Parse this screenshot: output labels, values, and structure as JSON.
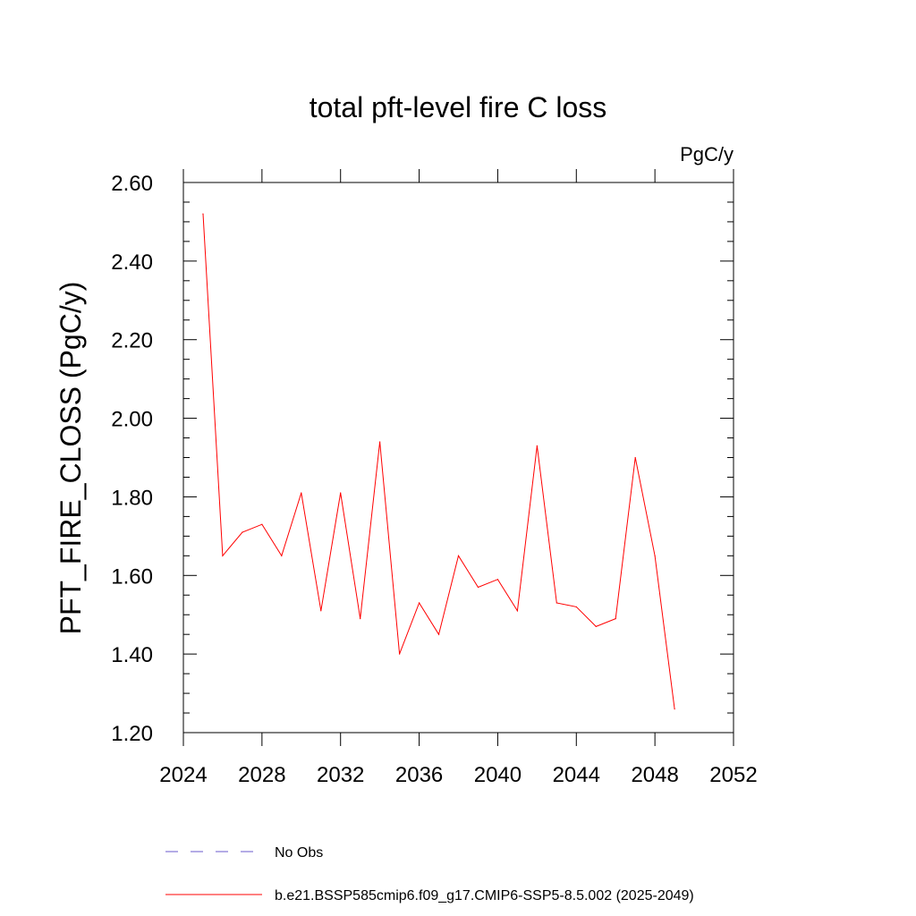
{
  "chart_data": {
    "type": "line",
    "title": "total pft-level fire C loss",
    "units": "PgC/y",
    "ylabel": "PFT_FIRE_CLOSS  (PgC/y)",
    "xlabel": "",
    "xlim": [
      2024,
      2052
    ],
    "ylim": [
      1.2,
      2.6
    ],
    "xticks": [
      2024,
      2028,
      2032,
      2036,
      2040,
      2044,
      2048,
      2052
    ],
    "xtick_labels": [
      "2024",
      "2028",
      "2032",
      "2036",
      "2040",
      "2044",
      "2048",
      "2052"
    ],
    "yticks": [
      1.2,
      1.4,
      1.6,
      1.8,
      2.0,
      2.2,
      2.4,
      2.6
    ],
    "ytick_labels": [
      "1.20",
      "1.40",
      "1.60",
      "1.80",
      "2.00",
      "2.20",
      "2.40",
      "2.60"
    ],
    "series": [
      {
        "name": "b.e21.BSSP585cmip6.f09_g17.CMIP6-SSP5-8.5.002 (2025-2049)",
        "color": "#ff0000",
        "x": [
          2025,
          2026,
          2027,
          2028,
          2029,
          2030,
          2031,
          2032,
          2033,
          2034,
          2035,
          2036,
          2037,
          2038,
          2039,
          2040,
          2041,
          2042,
          2043,
          2044,
          2045,
          2046,
          2047,
          2048,
          2049
        ],
        "values": [
          2.52,
          1.65,
          1.71,
          1.73,
          1.65,
          1.81,
          1.51,
          1.81,
          1.49,
          1.94,
          1.4,
          1.53,
          1.45,
          1.65,
          1.57,
          1.59,
          1.51,
          1.93,
          1.53,
          1.52,
          1.47,
          1.49,
          1.9,
          1.65,
          1.26
        ]
      }
    ],
    "legend": [
      {
        "label": "No Obs",
        "style": "dashed",
        "color": "#6a5acd"
      },
      {
        "label": "b.e21.BSSP585cmip6.f09_g17.CMIP6-SSP5-8.5.002 (2025-2049)",
        "style": "solid",
        "color": "#ff0000"
      }
    ],
    "legend_position": "bottom"
  }
}
